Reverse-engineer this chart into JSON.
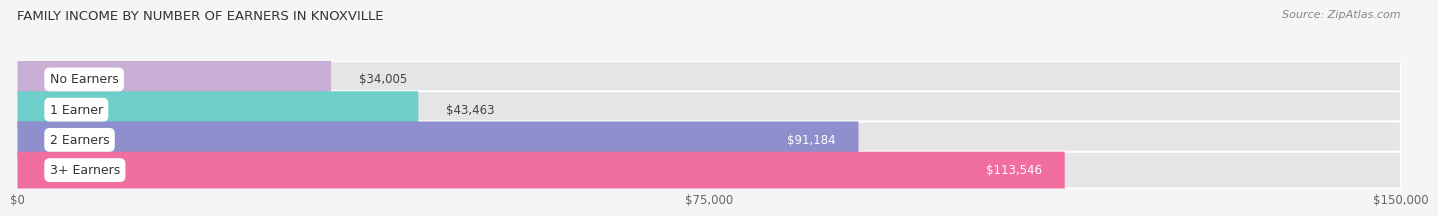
{
  "title": "FAMILY INCOME BY NUMBER OF EARNERS IN KNOXVILLE",
  "source": "Source: ZipAtlas.com",
  "categories": [
    "No Earners",
    "1 Earner",
    "2 Earners",
    "3+ Earners"
  ],
  "values": [
    34005,
    43463,
    91184,
    113546
  ],
  "bar_colors": [
    "#c9aed6",
    "#6ecfca",
    "#8e8fcc",
    "#f06fa0"
  ],
  "bar_bg_color": "#e5e5e5",
  "value_labels": [
    "$34,005",
    "$43,463",
    "$91,184",
    "$113,546"
  ],
  "x_ticks": [
    0,
    75000,
    150000
  ],
  "x_tick_labels": [
    "$0",
    "$75,000",
    "$150,000"
  ],
  "xlim": [
    0,
    150000
  ],
  "fig_bg_color": "#f5f5f5",
  "title_fontsize": 9.5,
  "source_fontsize": 8,
  "label_fontsize": 9,
  "value_fontsize": 8.5,
  "tick_fontsize": 8.5
}
